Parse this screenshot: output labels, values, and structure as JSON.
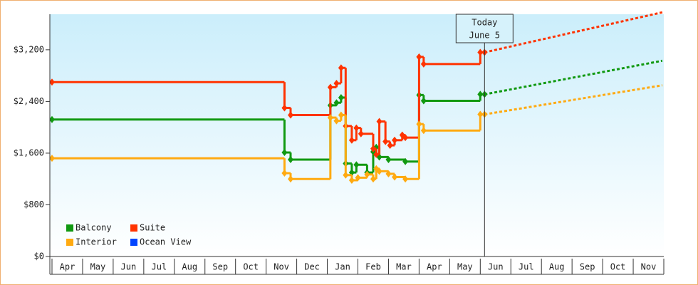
{
  "chart_data": {
    "type": "step-line",
    "xlim": [
      0,
      20
    ],
    "xticks": [
      {
        "value": 0,
        "label": "Apr"
      },
      {
        "value": 1,
        "label": "May"
      },
      {
        "value": 2,
        "label": "Jun"
      },
      {
        "value": 3,
        "label": "Jul"
      },
      {
        "value": 4,
        "label": "Aug"
      },
      {
        "value": 5,
        "label": "Sep"
      },
      {
        "value": 6,
        "label": "Oct"
      },
      {
        "value": 7,
        "label": "Nov"
      },
      {
        "value": 8,
        "label": "Dec"
      },
      {
        "value": 9,
        "label": "Jan"
      },
      {
        "value": 10,
        "label": "Feb"
      },
      {
        "value": 11,
        "label": "Mar"
      },
      {
        "value": 12,
        "label": "Apr"
      },
      {
        "value": 13,
        "label": "May"
      },
      {
        "value": 14,
        "label": "Jun"
      },
      {
        "value": 15,
        "label": "Jul"
      },
      {
        "value": 16,
        "label": "Aug"
      },
      {
        "value": 17,
        "label": "Sep"
      },
      {
        "value": 18,
        "label": "Oct"
      },
      {
        "value": 19,
        "label": "Nov"
      }
    ],
    "ylim": [
      0,
      3750
    ],
    "yticks": [
      {
        "value": 0,
        "label": "$0"
      },
      {
        "value": 800,
        "label": "$800"
      },
      {
        "value": 1600,
        "label": "$1,600"
      },
      {
        "value": 2400,
        "label": "$2,400"
      },
      {
        "value": 3200,
        "label": "$3,200"
      }
    ],
    "today": {
      "x": 14.14,
      "label": [
        "Today",
        "June 5"
      ]
    },
    "forecast_x": [
      14.14,
      19.95
    ],
    "series": [
      {
        "name": "Balcony",
        "color": "#119911",
        "x": [
          0,
          7.6,
          7.8,
          9.1,
          9.3,
          9.45,
          9.6,
          9.8,
          9.95,
          10.3,
          10.5,
          10.6,
          10.7,
          11.0,
          11.55,
          12.0,
          12.15,
          14.0,
          14.14
        ],
        "values": [
          2120,
          1610,
          1500,
          2340,
          2380,
          2460,
          1440,
          1300,
          1420,
          1300,
          1620,
          1690,
          1540,
          1500,
          1470,
          2500,
          2410,
          2510,
          2510
        ],
        "forecast": [
          2510,
          3030
        ]
      },
      {
        "name": "Suite",
        "color": "#ff3300",
        "x": [
          0,
          7.6,
          7.8,
          9.1,
          9.3,
          9.45,
          9.6,
          9.8,
          9.95,
          10.1,
          10.5,
          10.6,
          10.7,
          10.9,
          11.05,
          11.2,
          11.45,
          11.55,
          12.0,
          12.15,
          14.0,
          14.14
        ],
        "values": [
          2700,
          2300,
          2190,
          2620,
          2680,
          2920,
          2020,
          1800,
          1990,
          1900,
          1670,
          1580,
          2090,
          1780,
          1720,
          1800,
          1880,
          1840,
          3090,
          2980,
          3160,
          3160
        ],
        "forecast": [
          3160,
          3780
        ]
      },
      {
        "name": "Interior",
        "color": "#ffaa11",
        "x": [
          0,
          7.6,
          7.8,
          9.1,
          9.3,
          9.45,
          9.6,
          9.8,
          10.0,
          10.3,
          10.5,
          10.6,
          10.7,
          11.0,
          11.2,
          11.55,
          12.0,
          12.15,
          14.0,
          14.14
        ],
        "values": [
          1520,
          1290,
          1200,
          2150,
          2100,
          2190,
          1260,
          1180,
          1220,
          1270,
          1200,
          1360,
          1320,
          1280,
          1230,
          1200,
          2050,
          1950,
          2200,
          2200
        ],
        "forecast": [
          2200,
          2650
        ]
      },
      {
        "name": "Ocean View",
        "color": "#0044ff",
        "x": [],
        "values": [],
        "forecast": []
      }
    ]
  }
}
